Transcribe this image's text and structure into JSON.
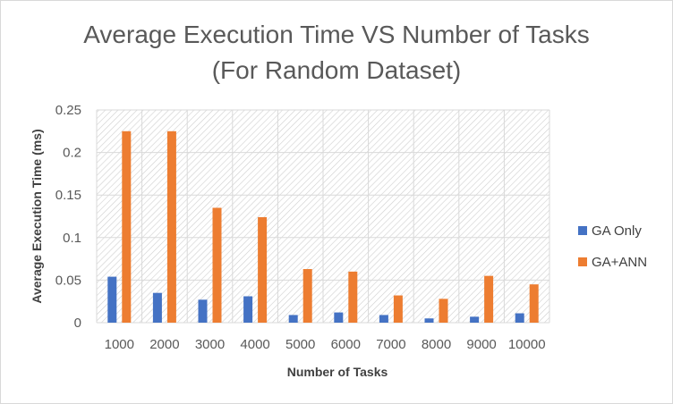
{
  "chart_data": {
    "type": "bar",
    "title_line1": "Average Execution Time VS Number of Tasks",
    "title_line2": "(For Random Dataset)",
    "xlabel": "Number of Tasks",
    "ylabel": "Average Execution Time  (ms)",
    "categories": [
      "1000",
      "2000",
      "3000",
      "4000",
      "5000",
      "6000",
      "7000",
      "8000",
      "9000",
      "10000"
    ],
    "ylim": [
      0,
      0.25
    ],
    "yticks": [
      0,
      0.05,
      0.1,
      0.15,
      0.2,
      0.25
    ],
    "ytick_labels": [
      "0",
      "0.05",
      "0.1",
      "0.15",
      "0.2",
      "0.25"
    ],
    "series": [
      {
        "name": "GA Only",
        "color": "#4472c4",
        "values": [
          0.054,
          0.035,
          0.027,
          0.031,
          0.009,
          0.012,
          0.009,
          0.005,
          0.007,
          0.011
        ]
      },
      {
        "name": "GA+ANN",
        "color": "#ed7d31",
        "values": [
          0.225,
          0.225,
          0.135,
          0.124,
          0.063,
          0.06,
          0.032,
          0.028,
          0.055,
          0.045
        ]
      }
    ],
    "grid": true,
    "legend_position": "right"
  }
}
